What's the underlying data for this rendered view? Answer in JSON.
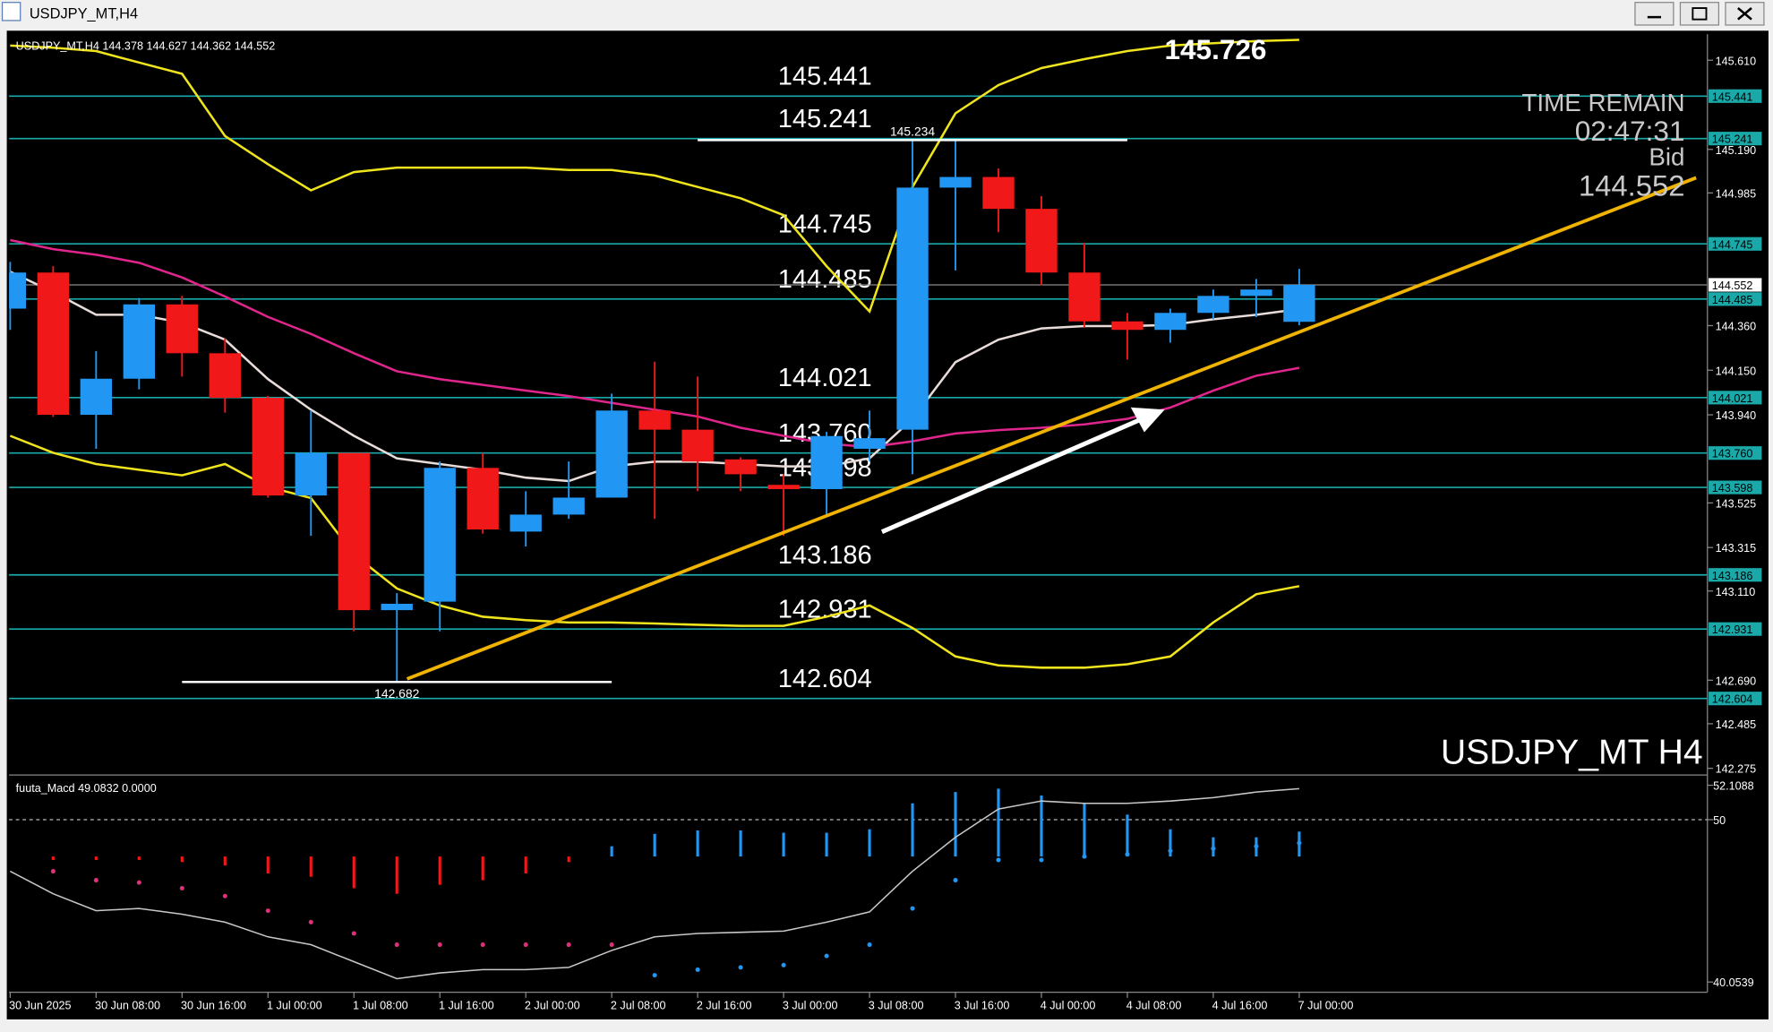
{
  "window": {
    "title": "USDJPY_MT,H4"
  },
  "chart_data": {
    "type": "candlestick",
    "symbol_label": "USDJPY_MT,H4",
    "corner_label": "USDJPY_MT H4",
    "time_remain_label": "TIME REMAIN",
    "time_remain": "02:47:31",
    "bid_label": "Bid",
    "peak_label": "145.726",
    "x": [
      "30 Jun 2025",
      null,
      "30 Jun 08:00",
      null,
      "30 Jun 16:00",
      null,
      "1 Jul 00:00",
      null,
      "1 Jul 08:00",
      null,
      "1 Jul 16:00",
      null,
      "2 Jul 00:00",
      null,
      "2 Jul 08:00",
      null,
      "2 Jul 16:00",
      null,
      "3 Jul 00:00",
      null,
      "3 Jul 08:00",
      null,
      "3 Jul 16:00",
      null,
      "4 Jul 00:00",
      null,
      "4 Jul 08:00",
      null,
      "4 Jul 16:00",
      null,
      "7 Jul 00:00"
    ],
    "open": [
      144.44,
      144.61,
      143.94,
      144.11,
      144.46,
      144.23,
      144.02,
      143.56,
      143.76,
      143.02,
      143.06,
      143.69,
      143.39,
      143.47,
      143.55,
      143.96,
      143.87,
      143.73,
      143.61,
      143.59,
      143.78,
      143.87,
      145.01,
      145.06,
      144.91,
      144.61,
      144.38,
      144.34,
      144.42,
      144.5,
      144.378
    ],
    "high": [
      144.66,
      144.64,
      144.24,
      144.49,
      144.5,
      144.3,
      144.03,
      143.96,
      143.76,
      143.1,
      143.72,
      143.76,
      143.58,
      143.72,
      144.04,
      144.19,
      144.12,
      143.74,
      143.66,
      143.86,
      143.96,
      145.234,
      145.23,
      145.1,
      144.97,
      144.75,
      144.42,
      144.44,
      144.53,
      144.58,
      144.627
    ],
    "low": [
      144.34,
      143.93,
      143.78,
      144.06,
      144.12,
      143.95,
      143.55,
      143.37,
      142.92,
      142.682,
      142.92,
      143.38,
      143.32,
      143.45,
      143.55,
      143.45,
      143.58,
      143.58,
      143.37,
      143.46,
      143.72,
      143.66,
      144.62,
      144.8,
      144.55,
      144.35,
      144.2,
      144.28,
      144.39,
      144.4,
      144.362
    ],
    "close": [
      144.61,
      143.94,
      144.11,
      144.46,
      144.23,
      144.02,
      143.56,
      143.76,
      143.02,
      143.05,
      143.69,
      143.4,
      143.47,
      143.55,
      143.96,
      143.87,
      143.72,
      143.66,
      143.59,
      143.84,
      143.83,
      145.01,
      145.06,
      144.91,
      144.61,
      144.38,
      144.34,
      144.42,
      144.5,
      144.53,
      144.552
    ],
    "up_color": "#2196f3",
    "down_color": "#f01818",
    "overlays": [
      {
        "color": "#e8dcd8",
        "values": [
          144.614,
          144.518,
          144.411,
          144.411,
          144.374,
          144.294,
          144.108,
          143.964,
          143.841,
          143.735,
          143.708,
          143.681,
          143.644,
          143.628,
          143.697,
          143.719,
          143.719,
          143.708,
          143.697,
          143.697,
          143.735,
          143.921,
          144.188,
          144.294,
          144.347,
          144.358,
          144.358,
          144.363,
          144.39,
          144.411,
          144.438
        ]
      },
      {
        "color": "#e0258c",
        "values": [
          144.763,
          144.72,
          144.694,
          144.656,
          144.587,
          144.497,
          144.401,
          144.321,
          144.23,
          144.145,
          144.108,
          144.081,
          144.054,
          144.028,
          143.996,
          143.964,
          143.932,
          143.879,
          143.841,
          143.804,
          143.788,
          143.815,
          143.852,
          143.868,
          143.879,
          143.895,
          143.921,
          143.974,
          144.054,
          144.124,
          144.161
        ]
      },
      {
        "color": "#f0e41c",
        "values": [
          145.679,
          145.669,
          145.653,
          145.599,
          145.546,
          145.253,
          145.12,
          144.997,
          145.083,
          145.104,
          145.104,
          145.104,
          145.104,
          145.093,
          145.093,
          145.067,
          145.013,
          144.96,
          144.88,
          144.64,
          144.427,
          145.013,
          145.36,
          145.493,
          145.573,
          145.615,
          145.653,
          145.679,
          145.69,
          145.7,
          145.706
        ]
      },
      {
        "color": "#f0e41c",
        "values": [
          143.841,
          143.761,
          143.708,
          143.681,
          143.655,
          143.708,
          143.601,
          143.548,
          143.282,
          143.122,
          143.042,
          142.989,
          142.973,
          142.962,
          142.962,
          142.957,
          142.951,
          142.946,
          142.946,
          142.989,
          143.042,
          142.936,
          142.802,
          142.76,
          142.749,
          142.749,
          142.765,
          142.802,
          142.962,
          143.095,
          143.133
        ]
      }
    ],
    "levels": [
      145.441,
      145.241,
      144.745,
      144.485,
      144.021,
      {
        "value": 143.76,
        "label": "143.760"
      },
      143.598,
      143.186,
      142.931,
      142.604
    ],
    "level_color": "#1aa8a8",
    "ylim": [
      142.254,
      145.717
    ],
    "yticks": [
      {
        "value": 145.61,
        "label": "145.610"
      },
      {
        "value": 145.19,
        "label": "145.190"
      },
      144.985,
      {
        "value": 144.36,
        "label": "144.360"
      },
      {
        "value": 144.15,
        "label": "144.150"
      },
      {
        "value": 143.94,
        "label": "143.940"
      },
      143.525,
      143.315,
      {
        "value": 143.11,
        "label": "143.110"
      },
      {
        "value": 142.69,
        "label": "142.690"
      },
      142.485,
      142.275
    ],
    "indicator": {
      "label": "fuuta_Macd 49.0832 0.0000",
      "ylim": [
        39.427,
        52.594
      ],
      "yticks": [
        52.1088,
        50,
        40.0539
      ],
      "reference": 50,
      "line": {
        "color": "#c8c8c8",
        "values": [
          46.84,
          45.46,
          44.42,
          44.56,
          44.21,
          43.72,
          42.82,
          42.34,
          41.3,
          40.26,
          40.61,
          40.81,
          40.81,
          40.95,
          41.99,
          42.82,
          43.03,
          43.1,
          43.17,
          43.72,
          44.35,
          46.84,
          48.92,
          50.65,
          51.14,
          51.0,
          51.0,
          51.14,
          51.35,
          51.69,
          51.9
        ]
      },
      "histogram": {
        "base": 47.74,
        "values": [
          null,
          47.53,
          47.53,
          47.53,
          47.4,
          47.19,
          46.7,
          46.5,
          45.8,
          45.46,
          46.01,
          46.29,
          46.7,
          47.4,
          48.37,
          49.13,
          49.34,
          49.34,
          49.2,
          49.2,
          49.41,
          51.0,
          51.69,
          51.9,
          51.48,
          51.0,
          50.31,
          49.41,
          48.92,
          48.92,
          49.27
        ]
      },
      "dots": {
        "values": [
          null,
          46.84,
          46.29,
          46.15,
          45.8,
          45.32,
          44.42,
          43.72,
          43.03,
          42.34,
          42.34,
          42.34,
          42.34,
          42.34,
          42.34,
          40.47,
          40.81,
          40.95,
          41.09,
          41.65,
          42.34,
          44.56,
          46.29,
          47.53,
          47.53,
          47.74,
          47.88,
          48.09,
          48.23,
          48.37,
          48.57
        ],
        "colors": [
          null,
          "#e0307a",
          "#e0307a",
          "#e0307a",
          "#e0307a",
          "#e0307a",
          "#e0307a",
          "#e0307a",
          "#e0307a",
          "#e0307a",
          "#e0307a",
          "#e0307a",
          "#e0307a",
          "#e0307a",
          "#e0307a",
          "#2196f3",
          "#2196f3",
          "#2196f3",
          "#2196f3",
          "#2196f3",
          "#2196f3",
          "#2196f3",
          "#2196f3",
          "#2196f3",
          "#2196f3",
          "#2196f3",
          "#2196f3",
          "#2196f3",
          "#2196f3",
          "#2196f3",
          "#2196f3"
        ]
      }
    }
  }
}
